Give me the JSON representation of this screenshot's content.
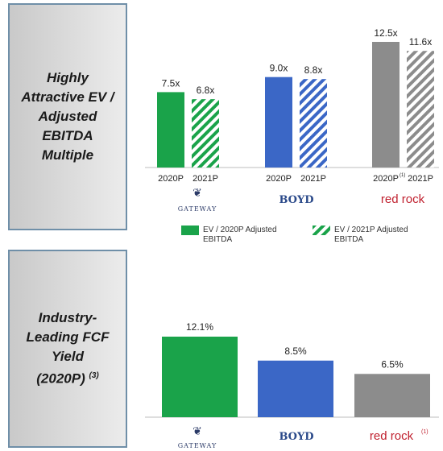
{
  "panels": {
    "top_title_lines": [
      "Highly",
      "Attractive EV /",
      "Adjusted",
      "EBITDA",
      "Multiple"
    ],
    "bottom_title_lines": [
      "Industry-",
      "Leading FCF",
      "Yield",
      "(2020P)"
    ],
    "bottom_title_footnote": "(3)"
  },
  "logos": {
    "gateway": "GATEWAY",
    "boyd": "BOYD",
    "redrock": "red rock",
    "redrock_footnote": "(1)"
  },
  "colors": {
    "gateway": "#1aa34a",
    "boyd": "#3b67c6",
    "redrock": "#8c8c8c",
    "grid": "#bdbdbd"
  },
  "chart_data": [
    {
      "type": "bar",
      "categories": [
        "Gateway",
        "Boyd",
        "Red Rock"
      ],
      "series": [
        {
          "name": "EV / 2020P Adjusted EBITDA",
          "values": [
            7.5,
            9.0,
            12.5
          ],
          "labels": [
            "7.5x",
            "9.0x",
            "12.5x"
          ],
          "ticks": [
            "2020P",
            "2020P",
            "2020P"
          ],
          "fill": "solid"
        },
        {
          "name": "EV / 2021P Adjusted EBITDA",
          "values": [
            6.8,
            8.8,
            11.6
          ],
          "labels": [
            "6.8x",
            "8.8x",
            "11.6x"
          ],
          "ticks": [
            "2021P",
            "2021P",
            "2021P"
          ],
          "fill": "hatched"
        }
      ],
      "tick_footnote": "(1)",
      "ylim": [
        0,
        13
      ],
      "legend": "bottom"
    },
    {
      "type": "bar",
      "categories": [
        "Gateway",
        "Boyd",
        "Red Rock"
      ],
      "values": [
        12.1,
        8.5,
        6.5
      ],
      "labels": [
        "12.1%",
        "8.5%",
        "6.5%"
      ],
      "ylim": [
        0,
        13
      ]
    }
  ]
}
